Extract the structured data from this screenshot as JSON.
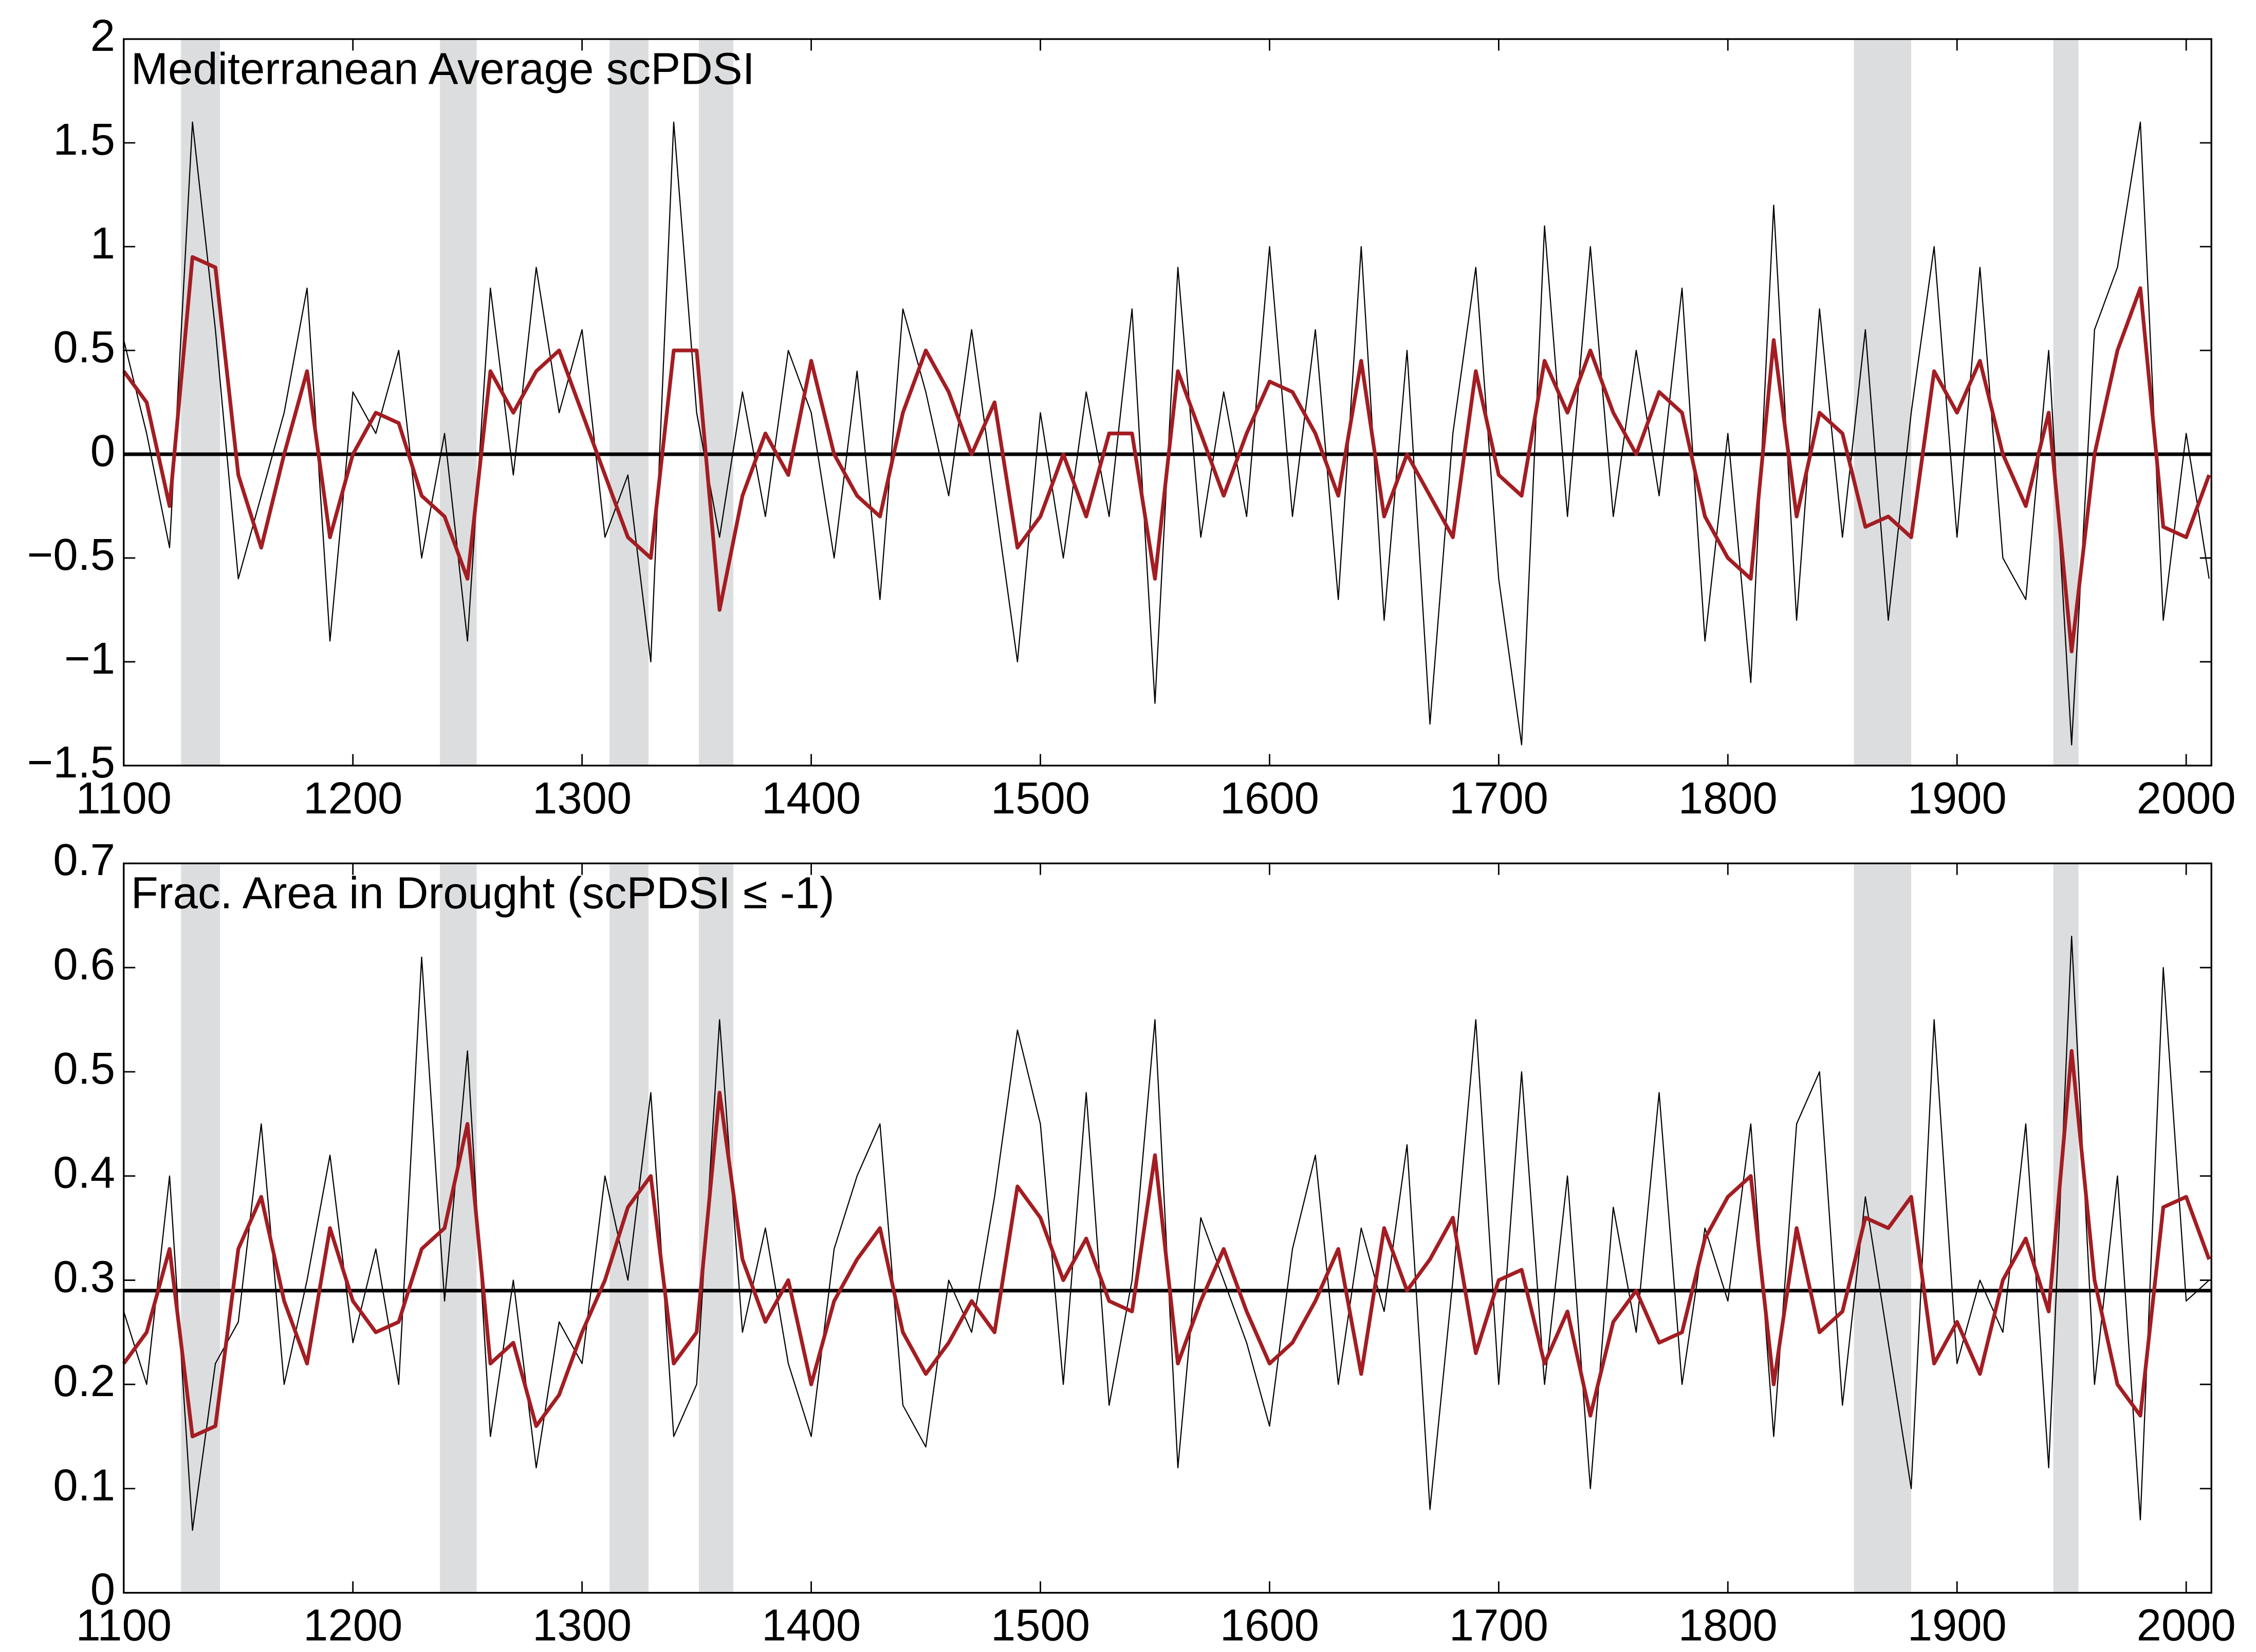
{
  "chart_data": [
    {
      "type": "line",
      "title": "Mediterranean Average scPDSI",
      "x": [
        1100,
        1110,
        1120,
        1130,
        1140,
        1150,
        1160,
        1170,
        1180,
        1190,
        1200,
        1210,
        1220,
        1230,
        1240,
        1250,
        1260,
        1270,
        1280,
        1290,
        1300,
        1310,
        1320,
        1330,
        1340,
        1350,
        1360,
        1370,
        1380,
        1390,
        1400,
        1410,
        1420,
        1430,
        1440,
        1450,
        1460,
        1470,
        1480,
        1490,
        1500,
        1510,
        1520,
        1530,
        1540,
        1550,
        1560,
        1570,
        1580,
        1590,
        1600,
        1610,
        1620,
        1630,
        1640,
        1650,
        1660,
        1670,
        1680,
        1690,
        1700,
        1710,
        1720,
        1730,
        1740,
        1750,
        1760,
        1770,
        1780,
        1790,
        1800,
        1810,
        1820,
        1830,
        1840,
        1850,
        1860,
        1870,
        1880,
        1890,
        1900,
        1910,
        1920,
        1930,
        1940,
        1950,
        1960,
        1970,
        1980,
        1990,
        2000,
        2010
      ],
      "series": [
        {
          "color": "#000000",
          "values": [
            0.55,
            0.1,
            -0.45,
            1.6,
            0.6,
            -0.6,
            -0.2,
            0.2,
            0.8,
            -0.9,
            0.3,
            0.1,
            0.5,
            -0.5,
            0.1,
            -0.9,
            0.8,
            -0.1,
            0.9,
            0.2,
            0.6,
            -0.4,
            -0.1,
            -1.0,
            1.6,
            0.2,
            -0.4,
            0.3,
            -0.3,
            0.5,
            0.2,
            -0.5,
            0.4,
            -0.7,
            0.7,
            0.3,
            -0.2,
            0.6,
            -0.2,
            -1.0,
            0.2,
            -0.5,
            0.3,
            -0.3,
            0.7,
            -1.2,
            0.9,
            -0.4,
            0.3,
            -0.3,
            1.0,
            -0.3,
            0.6,
            -0.7,
            1.0,
            -0.8,
            0.5,
            -1.3,
            0.1,
            0.9,
            -0.6,
            -1.4,
            1.1,
            -0.3,
            1.0,
            -0.3,
            0.5,
            -0.2,
            0.8,
            -0.9,
            0.1,
            -1.1,
            1.2,
            -0.8,
            0.7,
            -0.4,
            0.6,
            -0.8,
            0.2,
            1.0,
            -0.4,
            0.9,
            -0.5,
            -0.7,
            0.5,
            -1.4,
            0.6,
            0.9,
            1.6,
            -0.8,
            0.1,
            -0.6
          ]
        },
        {
          "color": "#a31d22",
          "values": [
            0.4,
            0.25,
            -0.25,
            0.95,
            0.9,
            -0.1,
            -0.45,
            0.0,
            0.4,
            -0.4,
            0.0,
            0.2,
            0.15,
            -0.2,
            -0.3,
            -0.6,
            0.4,
            0.2,
            0.4,
            0.5,
            0.2,
            -0.1,
            -0.4,
            -0.5,
            0.5,
            0.5,
            -0.75,
            -0.2,
            0.1,
            -0.1,
            0.45,
            0.0,
            -0.2,
            -0.3,
            0.2,
            0.5,
            0.3,
            0.0,
            0.25,
            -0.45,
            -0.3,
            0.0,
            -0.3,
            0.1,
            0.1,
            -0.6,
            0.4,
            0.1,
            -0.2,
            0.1,
            0.35,
            0.3,
            0.1,
            -0.2,
            0.45,
            -0.3,
            0.0,
            -0.2,
            -0.4,
            0.4,
            -0.1,
            -0.2,
            0.45,
            0.2,
            0.5,
            0.2,
            0.0,
            0.3,
            0.2,
            -0.3,
            -0.5,
            -0.6,
            0.55,
            -0.3,
            0.2,
            0.1,
            -0.35,
            -0.3,
            -0.4,
            0.4,
            0.2,
            0.45,
            0.0,
            -0.25,
            0.2,
            -0.95,
            0.0,
            0.5,
            0.8,
            -0.35,
            -0.4,
            -0.1
          ]
        }
      ],
      "xlim": [
        1100,
        2011
      ],
      "ylim": [
        -1.5,
        2
      ],
      "xticks": [
        1100,
        1200,
        1300,
        1400,
        1500,
        1600,
        1700,
        1800,
        1900,
        2000
      ],
      "yticks": [
        {
          "value": -1.5,
          "label": "−1.5"
        },
        {
          "value": -1,
          "label": "−1"
        },
        {
          "value": -0.5,
          "label": "−0.5"
        },
        0,
        0.5,
        1,
        1.5,
        2
      ],
      "reference_line": 0,
      "shaded_periods": [
        [
          1125,
          1142
        ],
        [
          1238,
          1254
        ],
        [
          1312,
          1329
        ],
        [
          1351,
          1366
        ],
        [
          1855,
          1880
        ],
        [
          1942,
          1953
        ]
      ],
      "shade_color": "#dcdddf"
    },
    {
      "type": "line",
      "title": "Frac. Area in Drought (scPDSI ≤ -1)",
      "x": [
        1100,
        1110,
        1120,
        1130,
        1140,
        1150,
        1160,
        1170,
        1180,
        1190,
        1200,
        1210,
        1220,
        1230,
        1240,
        1250,
        1260,
        1270,
        1280,
        1290,
        1300,
        1310,
        1320,
        1330,
        1340,
        1350,
        1360,
        1370,
        1380,
        1390,
        1400,
        1410,
        1420,
        1430,
        1440,
        1450,
        1460,
        1470,
        1480,
        1490,
        1500,
        1510,
        1520,
        1530,
        1540,
        1550,
        1560,
        1570,
        1580,
        1590,
        1600,
        1610,
        1620,
        1630,
        1640,
        1650,
        1660,
        1670,
        1680,
        1690,
        1700,
        1710,
        1720,
        1730,
        1740,
        1750,
        1760,
        1770,
        1780,
        1790,
        1800,
        1810,
        1820,
        1830,
        1840,
        1850,
        1860,
        1870,
        1880,
        1890,
        1900,
        1910,
        1920,
        1930,
        1940,
        1950,
        1960,
        1970,
        1980,
        1990,
        2000,
        2010
      ],
      "series": [
        {
          "color": "#000000",
          "values": [
            0.27,
            0.2,
            0.4,
            0.06,
            0.22,
            0.26,
            0.45,
            0.2,
            0.3,
            0.42,
            0.24,
            0.33,
            0.2,
            0.61,
            0.28,
            0.52,
            0.15,
            0.3,
            0.12,
            0.26,
            0.22,
            0.4,
            0.3,
            0.48,
            0.15,
            0.2,
            0.55,
            0.25,
            0.35,
            0.22,
            0.15,
            0.33,
            0.4,
            0.45,
            0.18,
            0.14,
            0.3,
            0.25,
            0.38,
            0.54,
            0.45,
            0.2,
            0.48,
            0.18,
            0.3,
            0.55,
            0.12,
            0.36,
            0.3,
            0.24,
            0.16,
            0.33,
            0.42,
            0.2,
            0.35,
            0.27,
            0.43,
            0.08,
            0.3,
            0.55,
            0.2,
            0.5,
            0.2,
            0.4,
            0.1,
            0.37,
            0.25,
            0.48,
            0.2,
            0.35,
            0.28,
            0.45,
            0.15,
            0.45,
            0.5,
            0.18,
            0.38,
            0.24,
            0.1,
            0.55,
            0.22,
            0.3,
            0.25,
            0.45,
            0.12,
            0.63,
            0.2,
            0.4,
            0.07,
            0.6,
            0.28,
            0.3
          ]
        },
        {
          "color": "#a31d22",
          "values": [
            0.22,
            0.25,
            0.33,
            0.15,
            0.16,
            0.33,
            0.38,
            0.28,
            0.22,
            0.35,
            0.28,
            0.25,
            0.26,
            0.33,
            0.35,
            0.45,
            0.22,
            0.24,
            0.16,
            0.19,
            0.25,
            0.3,
            0.37,
            0.4,
            0.22,
            0.25,
            0.48,
            0.32,
            0.26,
            0.3,
            0.2,
            0.28,
            0.32,
            0.35,
            0.25,
            0.21,
            0.24,
            0.28,
            0.25,
            0.39,
            0.36,
            0.3,
            0.34,
            0.28,
            0.27,
            0.42,
            0.22,
            0.28,
            0.33,
            0.27,
            0.22,
            0.24,
            0.28,
            0.33,
            0.21,
            0.35,
            0.29,
            0.32,
            0.36,
            0.23,
            0.3,
            0.31,
            0.22,
            0.27,
            0.17,
            0.26,
            0.29,
            0.24,
            0.25,
            0.34,
            0.38,
            0.4,
            0.2,
            0.35,
            0.25,
            0.27,
            0.36,
            0.35,
            0.38,
            0.22,
            0.26,
            0.21,
            0.3,
            0.34,
            0.27,
            0.52,
            0.3,
            0.2,
            0.17,
            0.37,
            0.38,
            0.32
          ]
        }
      ],
      "xlim": [
        1100,
        2011
      ],
      "ylim": [
        0,
        0.7
      ],
      "xticks": [
        1100,
        1200,
        1300,
        1400,
        1500,
        1600,
        1700,
        1800,
        1900,
        2000
      ],
      "yticks": [
        0,
        0.1,
        0.2,
        0.3,
        0.4,
        0.5,
        0.6,
        0.7
      ],
      "reference_line": 0.29,
      "shaded_periods": [
        [
          1125,
          1142
        ],
        [
          1238,
          1254
        ],
        [
          1312,
          1329
        ],
        [
          1351,
          1366
        ],
        [
          1855,
          1880
        ],
        [
          1942,
          1953
        ]
      ],
      "shade_color": "#dcdddf"
    }
  ]
}
